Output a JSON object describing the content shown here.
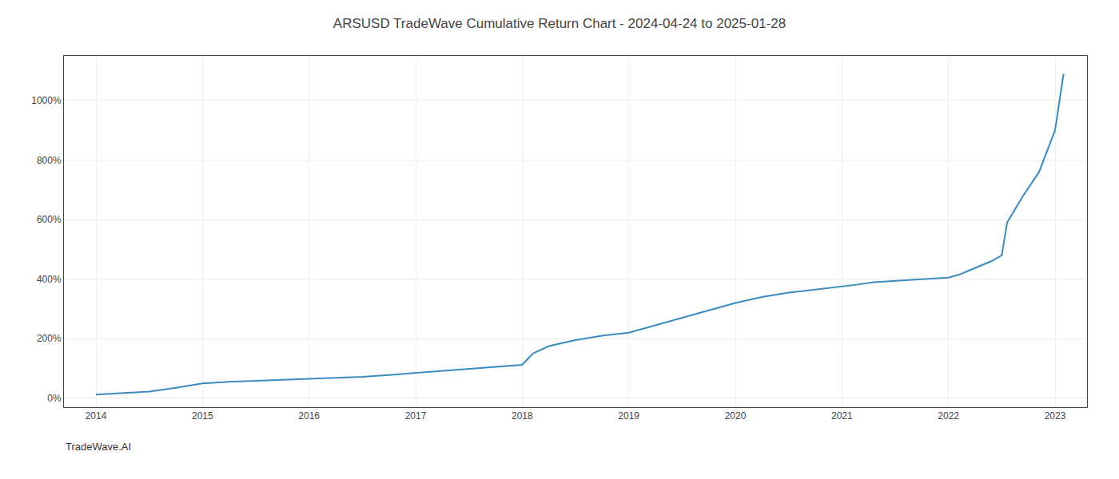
{
  "chart_data": {
    "type": "line",
    "title": "ARSUSD TradeWave Cumulative Return Chart - 2024-04-24 to 2025-01-28",
    "annotations": [
      "TradeWave.AI"
    ],
    "x": [
      2014.0,
      2014.2,
      2014.5,
      2014.75,
      2015.0,
      2015.25,
      2015.5,
      2015.75,
      2016.0,
      2016.25,
      2016.5,
      2016.75,
      2017.0,
      2017.25,
      2017.5,
      2017.75,
      2018.0,
      2018.1,
      2018.25,
      2018.5,
      2018.75,
      2019.0,
      2019.25,
      2019.5,
      2019.75,
      2020.0,
      2020.25,
      2020.5,
      2020.75,
      2021.0,
      2021.15,
      2021.3,
      2021.5,
      2021.75,
      2022.0,
      2022.1,
      2022.2,
      2022.4,
      2022.5,
      2022.55,
      2022.7,
      2022.85,
      2023.0,
      2023.08
    ],
    "values": [
      12,
      16,
      22,
      35,
      50,
      55,
      58,
      62,
      65,
      68,
      72,
      78,
      85,
      92,
      98,
      105,
      112,
      150,
      175,
      195,
      210,
      220,
      245,
      270,
      295,
      320,
      340,
      355,
      365,
      375,
      382,
      390,
      395,
      400,
      405,
      415,
      430,
      460,
      480,
      590,
      680,
      760,
      900,
      1090
    ],
    "color": "#3a8bbf",
    "xlim": [
      2013.7,
      2023.3
    ],
    "ylim": [
      -30,
      1150
    ],
    "xticks": [
      2014,
      2015,
      2016,
      2017,
      2018,
      2019,
      2020,
      2021,
      2022,
      2023
    ],
    "yticks": [
      {
        "value": 0,
        "label": "0%"
      },
      {
        "value": 200,
        "label": "200%"
      },
      {
        "value": 400,
        "label": "400%"
      },
      {
        "value": 600,
        "label": "600%"
      },
      {
        "value": 800,
        "label": "800%"
      },
      {
        "value": 1000,
        "label": "1000%"
      }
    ],
    "grid": true
  }
}
